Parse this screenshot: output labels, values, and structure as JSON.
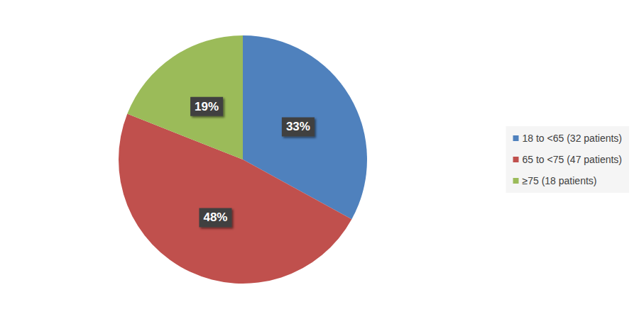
{
  "chart_data": {
    "type": "pie",
    "categories": [
      "18 to <65 (32 patients)",
      "65 to <75 (47 patients)",
      "≥75 (18 patients)"
    ],
    "values": [
      33,
      48,
      19
    ],
    "value_labels": [
      "33%",
      "48%",
      "19%"
    ],
    "colors": [
      "#4f81bd",
      "#c0504d",
      "#9bbb59"
    ],
    "data_labels": true,
    "legend": "right"
  }
}
